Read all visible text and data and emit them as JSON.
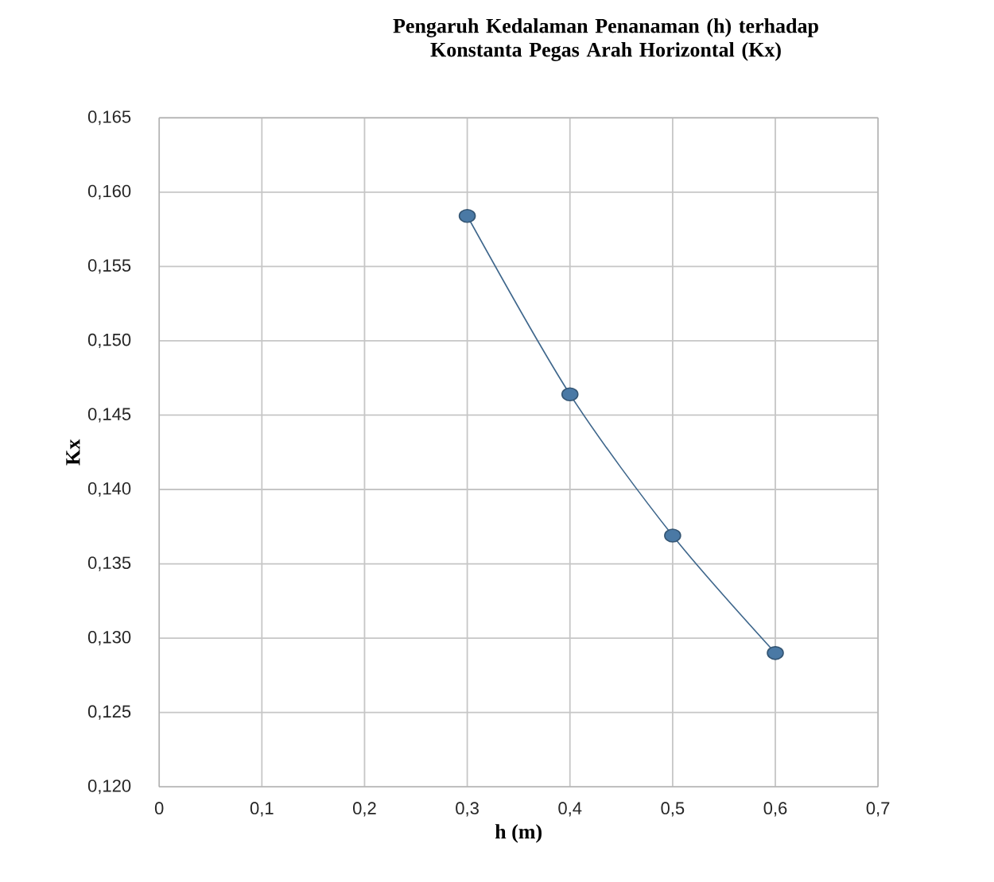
{
  "chart_data": {
    "type": "line",
    "title": "Pengaruh Kedalaman Penanaman (h) terhadap Konstanta Pegas Arah Horizontal (Kx)",
    "xlabel": "h (m)",
    "ylabel": "Kx",
    "x": [
      0.3,
      0.4,
      0.5,
      0.6
    ],
    "series": [
      {
        "color": "#4a79a5",
        "values": [
          0.1584,
          0.1464,
          0.1369,
          0.129
        ]
      }
    ],
    "xlim": [
      0,
      0.7
    ],
    "xticks": [
      0,
      {
        "value": 0.1,
        "label": "0,1"
      },
      {
        "value": 0.2,
        "label": "0,2"
      },
      {
        "value": 0.3,
        "label": "0,3"
      },
      {
        "value": 0.4,
        "label": "0,4"
      },
      {
        "value": 0.5,
        "label": "0,5"
      },
      {
        "value": 0.6,
        "label": "0,6"
      },
      {
        "value": 0.7,
        "label": "0,7"
      }
    ],
    "ylim": [
      0.12,
      0.165
    ],
    "yticks": [
      {
        "value": 0.12,
        "label": "0,120"
      },
      {
        "value": 0.125,
        "label": "0,125"
      },
      {
        "value": 0.13,
        "label": "0,130"
      },
      {
        "value": 0.135,
        "label": "0,135"
      },
      {
        "value": 0.14,
        "label": "0,140"
      },
      {
        "value": 0.145,
        "label": "0,145"
      },
      {
        "value": 0.15,
        "label": "0,150"
      },
      {
        "value": 0.155,
        "label": "0,155"
      },
      {
        "value": 0.16,
        "label": "0,160"
      },
      {
        "value": 0.165,
        "label": "0,165"
      }
    ],
    "grid": true,
    "marker": "circle",
    "line_style": "solid"
  }
}
